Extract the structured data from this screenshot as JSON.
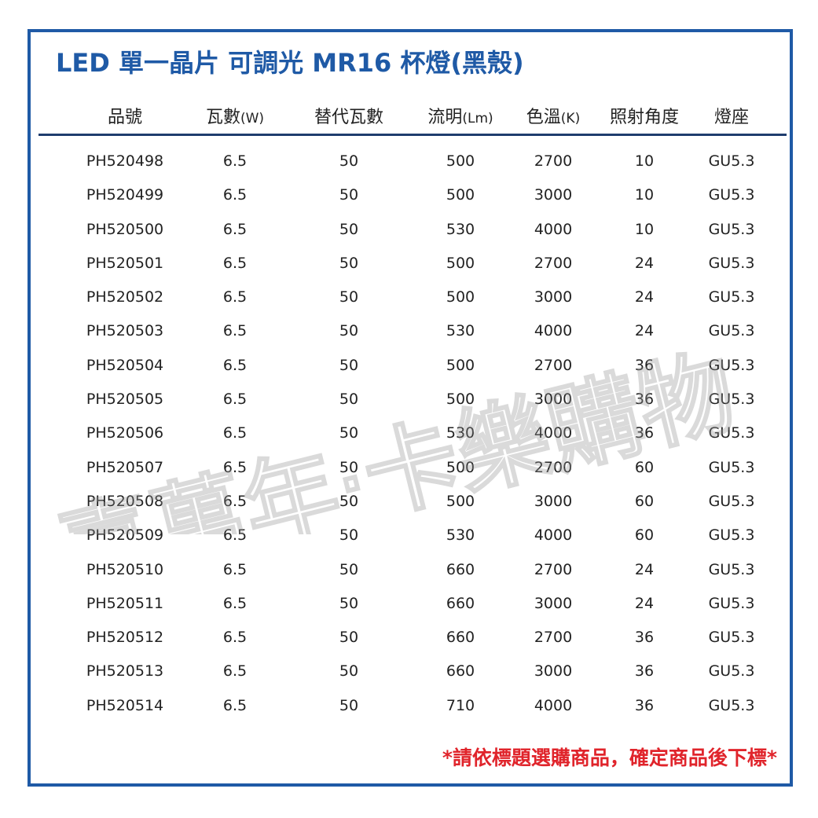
{
  "title": "LED 單一晶片 可調光 MR16 杯燈(黑殼)",
  "columns": [
    {
      "label": "品號",
      "unit": ""
    },
    {
      "label": "瓦數",
      "unit": "(W)"
    },
    {
      "label": "替代瓦數",
      "unit": ""
    },
    {
      "label": "流明",
      "unit": "(Lm)"
    },
    {
      "label": "色溫",
      "unit": "(K)"
    },
    {
      "label": "照射角度",
      "unit": ""
    },
    {
      "label": "燈座",
      "unit": ""
    }
  ],
  "rows": [
    [
      "PH520498",
      "6.5",
      "50",
      "500",
      "2700",
      "10",
      "GU5.3"
    ],
    [
      "PH520499",
      "6.5",
      "50",
      "500",
      "3000",
      "10",
      "GU5.3"
    ],
    [
      "PH520500",
      "6.5",
      "50",
      "530",
      "4000",
      "10",
      "GU5.3"
    ],
    [
      "PH520501",
      "6.5",
      "50",
      "500",
      "2700",
      "24",
      "GU5.3"
    ],
    [
      "PH520502",
      "6.5",
      "50",
      "500",
      "3000",
      "24",
      "GU5.3"
    ],
    [
      "PH520503",
      "6.5",
      "50",
      "530",
      "4000",
      "24",
      "GU5.3"
    ],
    [
      "PH520504",
      "6.5",
      "50",
      "500",
      "2700",
      "36",
      "GU5.3"
    ],
    [
      "PH520505",
      "6.5",
      "50",
      "500",
      "3000",
      "36",
      "GU5.3"
    ],
    [
      "PH520506",
      "6.5",
      "50",
      "530",
      "4000",
      "36",
      "GU5.3"
    ],
    [
      "PH520507",
      "6.5",
      "50",
      "500",
      "2700",
      "60",
      "GU5.3"
    ],
    [
      "PH520508",
      "6.5",
      "50",
      "500",
      "3000",
      "60",
      "GU5.3"
    ],
    [
      "PH520509",
      "6.5",
      "50",
      "530",
      "4000",
      "60",
      "GU5.3"
    ],
    [
      "PH520510",
      "6.5",
      "50",
      "660",
      "2700",
      "24",
      "GU5.3"
    ],
    [
      "PH520511",
      "6.5",
      "50",
      "660",
      "3000",
      "24",
      "GU5.3"
    ],
    [
      "PH520512",
      "6.5",
      "50",
      "660",
      "2700",
      "36",
      "GU5.3"
    ],
    [
      "PH520513",
      "6.5",
      "50",
      "660",
      "3000",
      "36",
      "GU5.3"
    ],
    [
      "PH520514",
      "6.5",
      "50",
      "710",
      "4000",
      "36",
      "GU5.3"
    ]
  ],
  "footnote": "*請依標題選購商品，確定商品後下標*",
  "watermark": "喜萬年·卡樂購物",
  "colors": {
    "frame": "#1f5aa6",
    "title": "#1f5aa6",
    "header_rule": "#1f3d6e",
    "footnote": "#e0242b",
    "watermark": "rgba(150,150,150,0.35)"
  }
}
